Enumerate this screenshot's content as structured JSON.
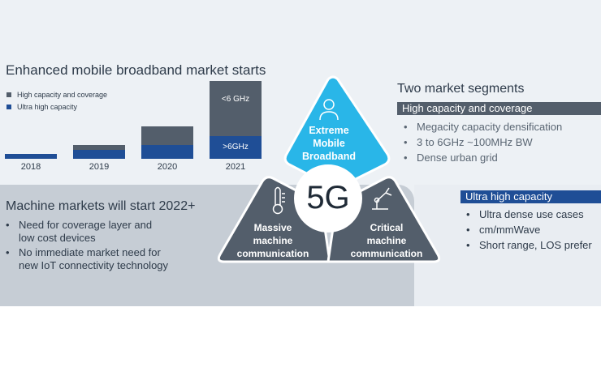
{
  "left_top": {
    "title": "Enhanced mobile broadband market starts",
    "legend": [
      {
        "label": "High capacity and coverage",
        "color": "#535e6b"
      },
      {
        "label": "Ultra high capacity",
        "color": "#1f4e96"
      }
    ]
  },
  "chart_data": {
    "type": "bar",
    "stacked": true,
    "categories": [
      "2018",
      "2019",
      "2020",
      "2021"
    ],
    "series": [
      {
        "name": "Ultra high capacity",
        "values": [
          1,
          2,
          3,
          5
        ],
        "color": "#1f4e96"
      },
      {
        "name": "High capacity and coverage",
        "values": [
          0,
          1,
          4,
          12
        ],
        "color": "#535e6b"
      }
    ],
    "ylim": [
      0,
      17
    ],
    "bar_labels": {
      "2021": {
        "top": "<6 GHz",
        "bottom": ">6GHz"
      }
    },
    "xlabel": "",
    "ylabel": ""
  },
  "machine": {
    "title": "Machine markets will start 2022+",
    "bullets": [
      "Need for coverage layer and\nlow cost devices",
      "No immediate market need for\nnew IoT connectivity technology"
    ]
  },
  "diagram": {
    "center": "5G",
    "top": "Extreme\nMobile\nBroadband",
    "left": "Massive\nmachine\ncommunication",
    "right": "Critical\nmachine\ncommunication",
    "colors": {
      "cyan": "#29b6e8",
      "dark": "#535e6b"
    },
    "icons": {
      "top": "person-icon",
      "left": "thermometer-icon",
      "right": "robot-arm-icon"
    }
  },
  "segments": {
    "title": "Two market segments",
    "high": {
      "heading": "High capacity and coverage",
      "bullets": [
        "Megacity capacity densification",
        "3 to 6GHz  ~100MHz BW",
        "Dense urban grid"
      ],
      "color": "#535e6b"
    },
    "ultra": {
      "heading": "Ultra high capacity",
      "bullets": [
        "Ultra dense use cases",
        "cm/mmWave",
        "Short range, LOS prefer"
      ],
      "color": "#1f4e96"
    }
  }
}
